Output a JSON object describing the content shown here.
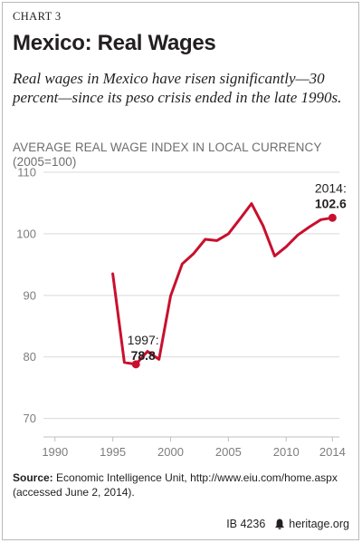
{
  "header": {
    "chart_number": "CHART 3",
    "title": "Mexico: Real Wages",
    "subtitle": "Real wages in Mexico have risen significantly—30 percent—since its peso crisis ended in the late 1990s."
  },
  "chart_data": {
    "type": "line",
    "title": "Mexico: Real Wages",
    "ylabel": "AVERAGE REAL WAGE INDEX IN LOCAL CURRENCY (2005=100)",
    "xlabel": "",
    "xlim": [
      1989,
      2014.6
    ],
    "ylim": [
      67,
      110
    ],
    "x_ticks": [
      "1990",
      "1995",
      "2000",
      "2005",
      "2010",
      "2014"
    ],
    "y_ticks": [
      "70",
      "80",
      "90",
      "100",
      "110"
    ],
    "grid": "horizontal",
    "color": "#c8102e",
    "x": [
      1995,
      1996,
      1997,
      1998,
      1999,
      2000,
      2001,
      2002,
      2003,
      2004,
      2005,
      2006,
      2007,
      2008,
      2009,
      2010,
      2011,
      2012,
      2013,
      2014
    ],
    "values": [
      93.5,
      79.1,
      78.8,
      80.9,
      79.6,
      89.9,
      95.1,
      96.8,
      99.1,
      98.9,
      100.0,
      102.4,
      104.9,
      101.3,
      96.4,
      97.9,
      99.8,
      101.1,
      102.3,
      102.6
    ],
    "annotations": [
      {
        "year_label": "1997:",
        "value_label": "78.8",
        "x": 1997,
        "y": 78.8
      },
      {
        "year_label": "2014:",
        "value_label": "102.6",
        "x": 2014,
        "y": 102.6
      }
    ]
  },
  "source": {
    "label": "Source:",
    "text": " Economic Intelligence Unit, http://www.eiu.com/home.aspx (accessed June 2, 2014)."
  },
  "footer": {
    "id": "IB 4236",
    "site": "heritage.org"
  }
}
